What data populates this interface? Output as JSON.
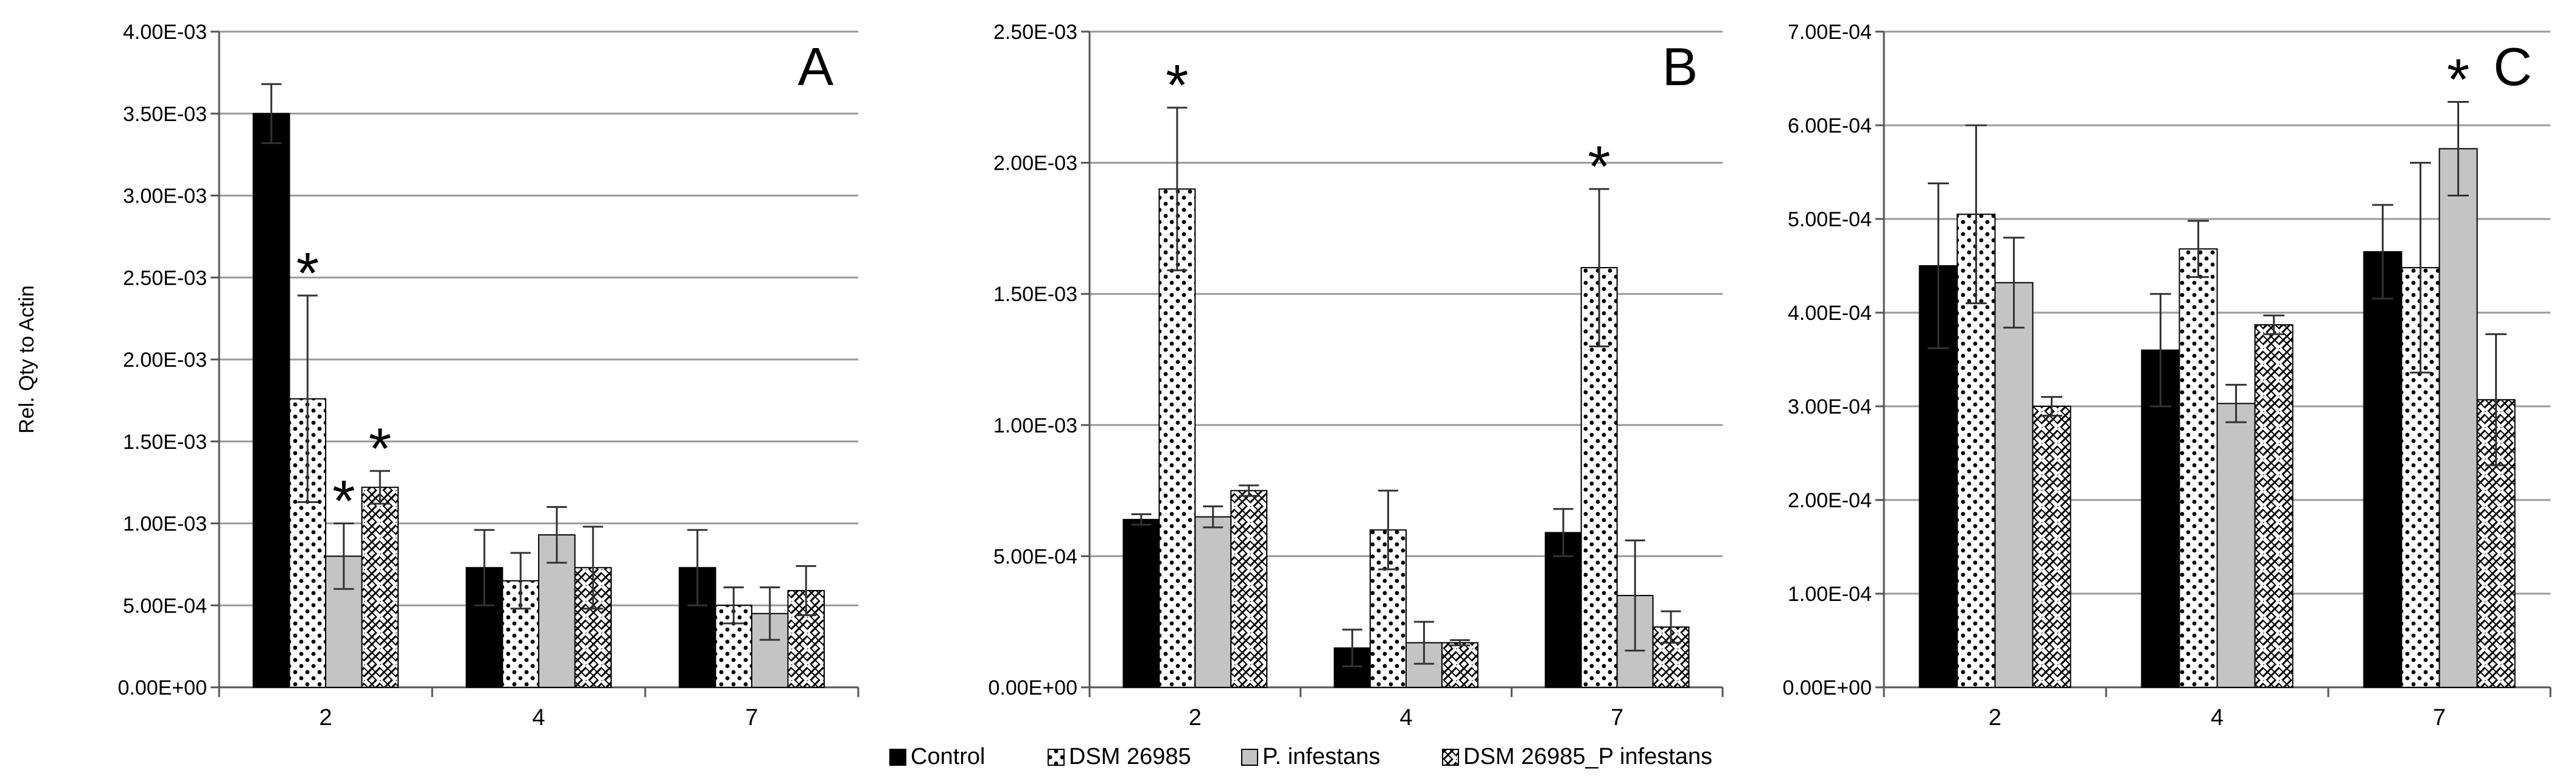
{
  "chart_data": [
    {
      "type": "bar",
      "panel_label": "A",
      "categories": [
        "2",
        "4",
        "7"
      ],
      "ylabel": "Rel. Qty to Actin",
      "ylim": [
        0,
        0.004
      ],
      "yticks": [
        "0.00E+00",
        "5.00E-04",
        "1.00E-03",
        "1.50E-03",
        "2.00E-03",
        "2.50E-03",
        "3.00E-03",
        "3.50E-03",
        "4.00E-03"
      ],
      "grid": true,
      "series": [
        {
          "name": "Control",
          "values": [
            0.0035,
            0.00073,
            0.00073
          ],
          "errors": [
            0.00018,
            0.00023,
            0.00023
          ],
          "sig": [
            false,
            false,
            false
          ]
        },
        {
          "name": "DSM 26985",
          "values": [
            0.00176,
            0.00065,
            0.0005
          ],
          "errors": [
            0.00063,
            0.00017,
            0.00011
          ],
          "sig": [
            true,
            false,
            false
          ]
        },
        {
          "name": "P. infestans",
          "values": [
            0.0008,
            0.00093,
            0.00045
          ],
          "errors": [
            0.0002,
            0.00017,
            0.00016
          ],
          "sig": [
            true,
            false,
            false
          ]
        },
        {
          "name": "DSM 26985_P infestans",
          "values": [
            0.00122,
            0.00073,
            0.00059
          ],
          "errors": [
            0.0001,
            0.00025,
            0.00015
          ],
          "sig": [
            true,
            false,
            false
          ]
        }
      ]
    },
    {
      "type": "bar",
      "panel_label": "B",
      "categories": [
        "2",
        "4",
        "7"
      ],
      "ylabel": "",
      "ylim": [
        0,
        0.0025
      ],
      "yticks": [
        "0.00E+00",
        "5.00E-04",
        "1.00E-03",
        "1.50E-03",
        "2.00E-03",
        "2.50E-03"
      ],
      "grid": true,
      "series": [
        {
          "name": "Control",
          "values": [
            0.00064,
            0.00015,
            0.00059
          ],
          "errors": [
            2e-05,
            7e-05,
            9e-05
          ],
          "sig": [
            false,
            false,
            false
          ]
        },
        {
          "name": "DSM 26985",
          "values": [
            0.0019,
            0.0006,
            0.0016
          ],
          "errors": [
            0.00031,
            0.00015,
            0.0003
          ],
          "sig": [
            true,
            false,
            true
          ]
        },
        {
          "name": "P. infestans",
          "values": [
            0.00065,
            0.00017,
            0.00035
          ],
          "errors": [
            4e-05,
            8e-05,
            0.00021
          ],
          "sig": [
            false,
            false,
            false
          ]
        },
        {
          "name": "DSM 26985_P infestans",
          "values": [
            0.00075,
            0.00017,
            0.00023
          ],
          "errors": [
            2e-05,
            1e-05,
            6e-05
          ],
          "sig": [
            false,
            false,
            false
          ]
        }
      ]
    },
    {
      "type": "bar",
      "panel_label": "C",
      "categories": [
        "2",
        "4",
        "7"
      ],
      "ylabel": "",
      "ylim": [
        0,
        0.0007
      ],
      "yticks": [
        "0.00E+00",
        "1.00E-04",
        "2.00E-04",
        "3.00E-04",
        "4.00E-04",
        "5.00E-04",
        "6.00E-04",
        "7.00E-04"
      ],
      "grid": true,
      "series": [
        {
          "name": "Control",
          "values": [
            0.00045,
            0.00036,
            0.000465
          ],
          "errors": [
            8.8e-05,
            6e-05,
            5e-05
          ],
          "sig": [
            false,
            false,
            false
          ]
        },
        {
          "name": "DSM 26985",
          "values": [
            0.000505,
            0.000468,
            0.000448
          ],
          "errors": [
            9.5e-05,
            3e-05,
            0.000112
          ],
          "sig": [
            false,
            false,
            false
          ]
        },
        {
          "name": "P. infestans",
          "values": [
            0.000432,
            0.000303,
            0.000575
          ],
          "errors": [
            4.8e-05,
            2e-05,
            5e-05
          ],
          "sig": [
            false,
            false,
            true
          ]
        },
        {
          "name": "DSM 26985_P infestans",
          "values": [
            0.0003,
            0.000387,
            0.000307
          ],
          "errors": [
            1e-05,
            1e-05,
            7e-05
          ],
          "sig": [
            false,
            false,
            false
          ]
        }
      ]
    }
  ],
  "legend": {
    "placement": "bottom",
    "entries": [
      "Control",
      "DSM 26985",
      "P. infestans",
      "DSM 26985_P infestans"
    ]
  },
  "significance_marker": "*",
  "colors": {
    "control": "#000000",
    "dsm": "#ffffff",
    "pinf": "#c4c4c4",
    "combo": "#ffffff",
    "grid": "#9a9a9a",
    "axis": "#555555"
  }
}
